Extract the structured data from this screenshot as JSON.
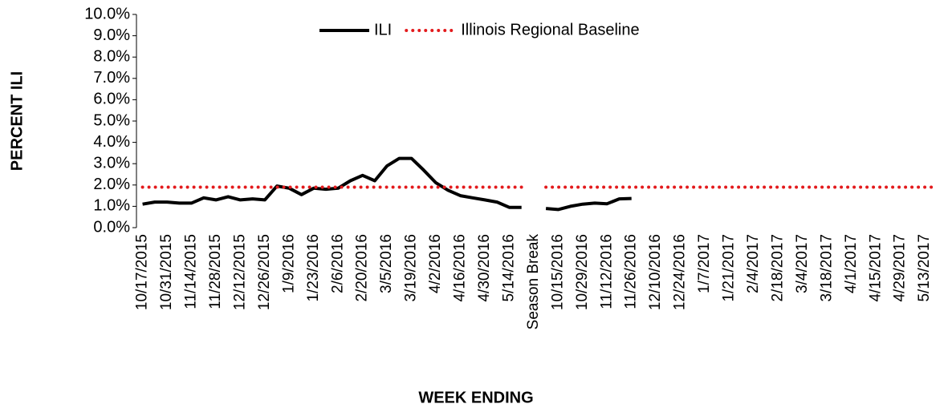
{
  "chart_data": {
    "type": "line",
    "categories": [
      "10/17/2015",
      null,
      "10/31/2015",
      null,
      "11/14/2015",
      null,
      "11/28/2015",
      null,
      "12/12/2015",
      null,
      "12/26/2015",
      null,
      "1/9/2016",
      null,
      "1/23/2016",
      null,
      "2/6/2016",
      null,
      "2/20/2016",
      null,
      "3/5/2016",
      null,
      "3/19/2016",
      null,
      "4/2/2016",
      null,
      "4/16/2016",
      null,
      "4/30/2016",
      null,
      "5/14/2016",
      null,
      "Season Break",
      null,
      "10/15/2016",
      null,
      "10/29/2016",
      null,
      "11/12/2016",
      null,
      "11/26/2016",
      null,
      "12/10/2016",
      null,
      "12/24/2016",
      null,
      "1/7/2017",
      null,
      "1/21/2017",
      null,
      "2/4/2017",
      null,
      "2/18/2017",
      null,
      "3/4/2017",
      null,
      "3/18/2017",
      null,
      "4/1/2017",
      null,
      "4/15/2017",
      null,
      "4/29/2017",
      null,
      "5/13/2017",
      null
    ],
    "series": [
      {
        "name": "ILI",
        "color": "#000000",
        "dash": "solid",
        "values": [
          1.1,
          1.2,
          1.2,
          1.15,
          1.15,
          1.4,
          1.3,
          1.45,
          1.3,
          1.35,
          1.3,
          1.95,
          1.85,
          1.55,
          1.85,
          1.8,
          1.85,
          2.2,
          2.45,
          2.2,
          2.9,
          3.25,
          3.25,
          2.7,
          2.1,
          1.75,
          1.5,
          1.4,
          1.3,
          1.2,
          0.95,
          0.95,
          null,
          0.9,
          0.85,
          1.0,
          1.1,
          1.15,
          1.12,
          1.35,
          1.37,
          null,
          null,
          null,
          null,
          null,
          null,
          null,
          null,
          null,
          null,
          null,
          null,
          null,
          null,
          null,
          null,
          null,
          null,
          null,
          null,
          null,
          null,
          null,
          null,
          null
        ]
      },
      {
        "name": "Illinois Regional Baseline",
        "color": "#e31a1c",
        "dash": "dotted",
        "values": [
          1.9,
          1.9,
          1.9,
          1.9,
          1.9,
          1.9,
          1.9,
          1.9,
          1.9,
          1.9,
          1.9,
          1.9,
          1.9,
          1.9,
          1.9,
          1.9,
          1.9,
          1.9,
          1.9,
          1.9,
          1.9,
          1.9,
          1.9,
          1.9,
          1.9,
          1.9,
          1.9,
          1.9,
          1.9,
          1.9,
          1.9,
          1.9,
          null,
          1.9,
          1.9,
          1.9,
          1.9,
          1.9,
          1.9,
          1.9,
          1.9,
          1.9,
          1.9,
          1.9,
          1.9,
          1.9,
          1.9,
          1.9,
          1.9,
          1.9,
          1.9,
          1.9,
          1.9,
          1.9,
          1.9,
          1.9,
          1.9,
          1.9,
          1.9,
          1.9,
          1.9,
          1.9,
          1.9,
          1.9,
          1.9,
          1.9
        ]
      }
    ],
    "x_label": "WEEK ENDING",
    "y_label": "PERCENT ILI",
    "axis_title_color": "#1f4e79",
    "ylim": [
      0,
      10
    ],
    "yticks": [
      {
        "value": 0,
        "label": "0.0%"
      },
      {
        "value": 1,
        "label": "1.0%"
      },
      {
        "value": 2,
        "label": "2.0%"
      },
      {
        "value": 3,
        "label": "3.0%"
      },
      {
        "value": 4,
        "label": "4.0%"
      },
      {
        "value": 5,
        "label": "5.0%"
      },
      {
        "value": 6,
        "label": "6.0%"
      },
      {
        "value": 7,
        "label": "7.0%"
      },
      {
        "value": 8,
        "label": "8.0%"
      },
      {
        "value": 9,
        "label": "9.0%"
      },
      {
        "value": 10,
        "label": "10.0%"
      }
    ],
    "grid": false,
    "legend": "top"
  }
}
